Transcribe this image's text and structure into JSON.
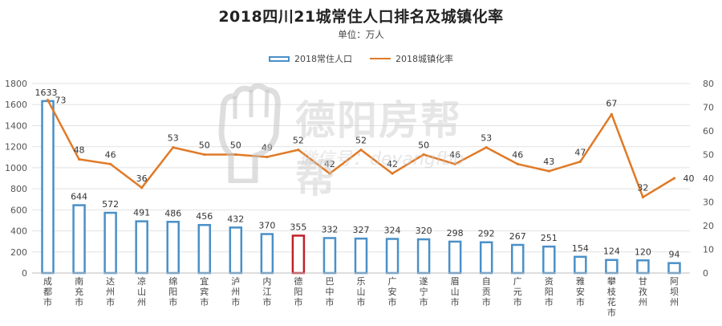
{
  "title": "2018四川21城常住人口排名及城镇化率",
  "subtitle": "单位：万人",
  "watermark": {
    "text": "德阳房帮帮",
    "subtext": "微信号：deyangfbb",
    "icon": "fist-icon"
  },
  "colors": {
    "bar": "#4a90c8",
    "bar_highlight": "#c0202a",
    "line": "#e07a28",
    "grid": "#e2e2e2"
  },
  "chart_data": {
    "type": "bar",
    "categories": [
      "成都市",
      "南充市",
      "达州市",
      "凉山州",
      "绵阳市",
      "宜宾市",
      "泸州市",
      "内江市",
      "德阳市",
      "巴中市",
      "乐山市",
      "广安市",
      "遂宁市",
      "眉山市",
      "自贡市",
      "广元市",
      "资阳市",
      "雅安市",
      "攀枝花市",
      "甘孜州",
      "阿坝州"
    ],
    "series": [
      {
        "name": "2018常住人口",
        "type": "bar",
        "axis": "left",
        "values": [
          1633,
          644,
          572,
          491,
          486,
          456,
          432,
          370,
          355,
          332,
          327,
          324,
          320,
          298,
          292,
          267,
          251,
          154,
          124,
          120,
          94
        ]
      },
      {
        "name": "2018城镇化率",
        "type": "line",
        "axis": "right",
        "values": [
          73,
          48,
          46,
          36,
          53,
          50,
          50,
          49,
          52,
          42,
          52,
          42,
          50,
          46,
          53,
          46,
          43,
          47,
          67,
          32,
          40
        ]
      }
    ],
    "highlight_category": "德阳市",
    "ylim_left": [
      0,
      1800
    ],
    "yticks_left": [
      0,
      200,
      400,
      600,
      800,
      1000,
      1200,
      1400,
      1600,
      1800
    ],
    "ylim_right": [
      0,
      80
    ],
    "yticks_right": [
      0,
      10,
      20,
      30,
      40,
      50,
      60,
      70,
      80
    ],
    "grid": true,
    "legend_position": "top-center"
  }
}
